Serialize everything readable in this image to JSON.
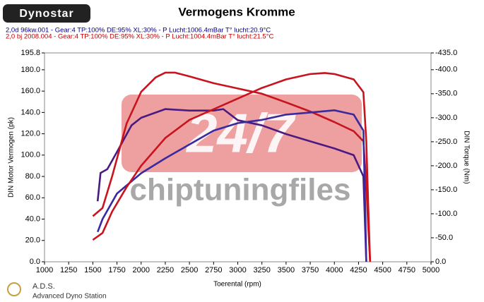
{
  "chart_data": {
    "type": "line",
    "title": "Vermogens Kromme",
    "brand": "Dynostar",
    "footer_title": "A.D.S.",
    "footer_subtitle": "Advanced Dyno Station",
    "watermark": [
      "24/7",
      "chiptuningfiles"
    ],
    "legend": [
      {
        "text": "2,0d 96kw.001 - Gear:4 TP:100% DE:95% XL:30%   - P Lucht:1006.4mBar T° lucht:20.9°C",
        "color": "#000080"
      },
      {
        "text": "2,0 bj 2008.004 - Gear:4 TP:100% DE:95% XL:30%    - P Lucht:1004.4mBar T° lucht:21.5°C",
        "color": "#c00000"
      }
    ],
    "xlabel": "Toerental (rpm)",
    "ylabel": "DIN Motor Vermogen (pk)",
    "y2label": "DIN Torque (Nm)",
    "xlim": [
      1000,
      5000
    ],
    "xticks": [
      1000,
      1250,
      1500,
      1750,
      2000,
      2250,
      2500,
      2750,
      3000,
      3250,
      3500,
      3750,
      4000,
      4250,
      4500,
      4750,
      5000
    ],
    "ylim": [
      0,
      195.8
    ],
    "yticks": [
      {
        "value": 0,
        "label": "0.0"
      },
      {
        "value": 20,
        "label": "20.0"
      },
      {
        "value": 40,
        "label": "40.0"
      },
      {
        "value": 60,
        "label": "60.0"
      },
      {
        "value": 80,
        "label": "80.0"
      },
      {
        "value": 100,
        "label": "100.0"
      },
      {
        "value": 120,
        "label": "120.0"
      },
      {
        "value": 140,
        "label": "140.0"
      },
      {
        "value": 160,
        "label": "160.0"
      },
      {
        "value": 180,
        "label": "180.0"
      },
      195.8
    ],
    "y2lim": [
      0,
      435
    ],
    "y2ticks": [
      {
        "value": 0,
        "label": "0.0"
      },
      {
        "value": 50,
        "label": "-50.0"
      },
      {
        "value": 100,
        "label": "-100.0"
      },
      {
        "value": 150,
        "label": "-150.0"
      },
      {
        "value": 200,
        "label": "-200.0"
      },
      {
        "value": 250,
        "label": "-250.0"
      },
      {
        "value": 300,
        "label": "-300.0"
      },
      {
        "value": 350,
        "label": "-350.0"
      },
      {
        "value": 400,
        "label": "-400.0"
      },
      {
        "value": 435,
        "label": "-435.0"
      }
    ],
    "series": [
      {
        "color": "#4a1a80",
        "axis": "y2",
        "x": [
          1550,
          1580,
          1650,
          1750,
          1900,
          2000,
          2250,
          2500,
          2750,
          2850,
          3000,
          3250,
          3500,
          3750,
          4000,
          4200,
          4300,
          4330
        ],
        "values": [
          126,
          185,
          193,
          229,
          284,
          300,
          318,
          315,
          315,
          318,
          295,
          284,
          266,
          251,
          236,
          222,
          178,
          0
        ]
      },
      {
        "color": "#c8141e",
        "axis": "y2",
        "x": [
          1500,
          1600,
          1700,
          1850,
          2000,
          2150,
          2250,
          2350,
          2500,
          2750,
          3000,
          3250,
          3500,
          3750,
          4000,
          4200,
          4300,
          4330,
          4350,
          4370
        ],
        "values": [
          95,
          112,
          178,
          288,
          354,
          384,
          394,
          394,
          386,
          372,
          361,
          350,
          332,
          313,
          291,
          272,
          251,
          163,
          75,
          0
        ]
      },
      {
        "color": "#3a2aa0",
        "axis": "y",
        "x": [
          1550,
          1600,
          1750,
          2000,
          2250,
          2500,
          2750,
          3000,
          3250,
          3500,
          3750,
          4000,
          4200,
          4300,
          4320,
          4330
        ],
        "values": [
          28,
          40,
          64,
          83,
          97,
          110,
          123,
          130,
          133,
          138,
          140,
          142,
          138,
          123,
          47,
          0
        ]
      },
      {
        "color": "#c8141e",
        "axis": "y",
        "x": [
          1500,
          1600,
          1700,
          1850,
          2000,
          2250,
          2500,
          2750,
          3000,
          3250,
          3500,
          3750,
          3900,
          4000,
          4200,
          4300,
          4330,
          4350,
          4370
        ],
        "values": [
          20.5,
          27,
          47,
          70,
          90,
          116,
          133,
          143,
          153,
          163,
          171,
          176,
          177,
          176,
          171,
          159,
          113,
          54,
          0
        ]
      }
    ]
  }
}
